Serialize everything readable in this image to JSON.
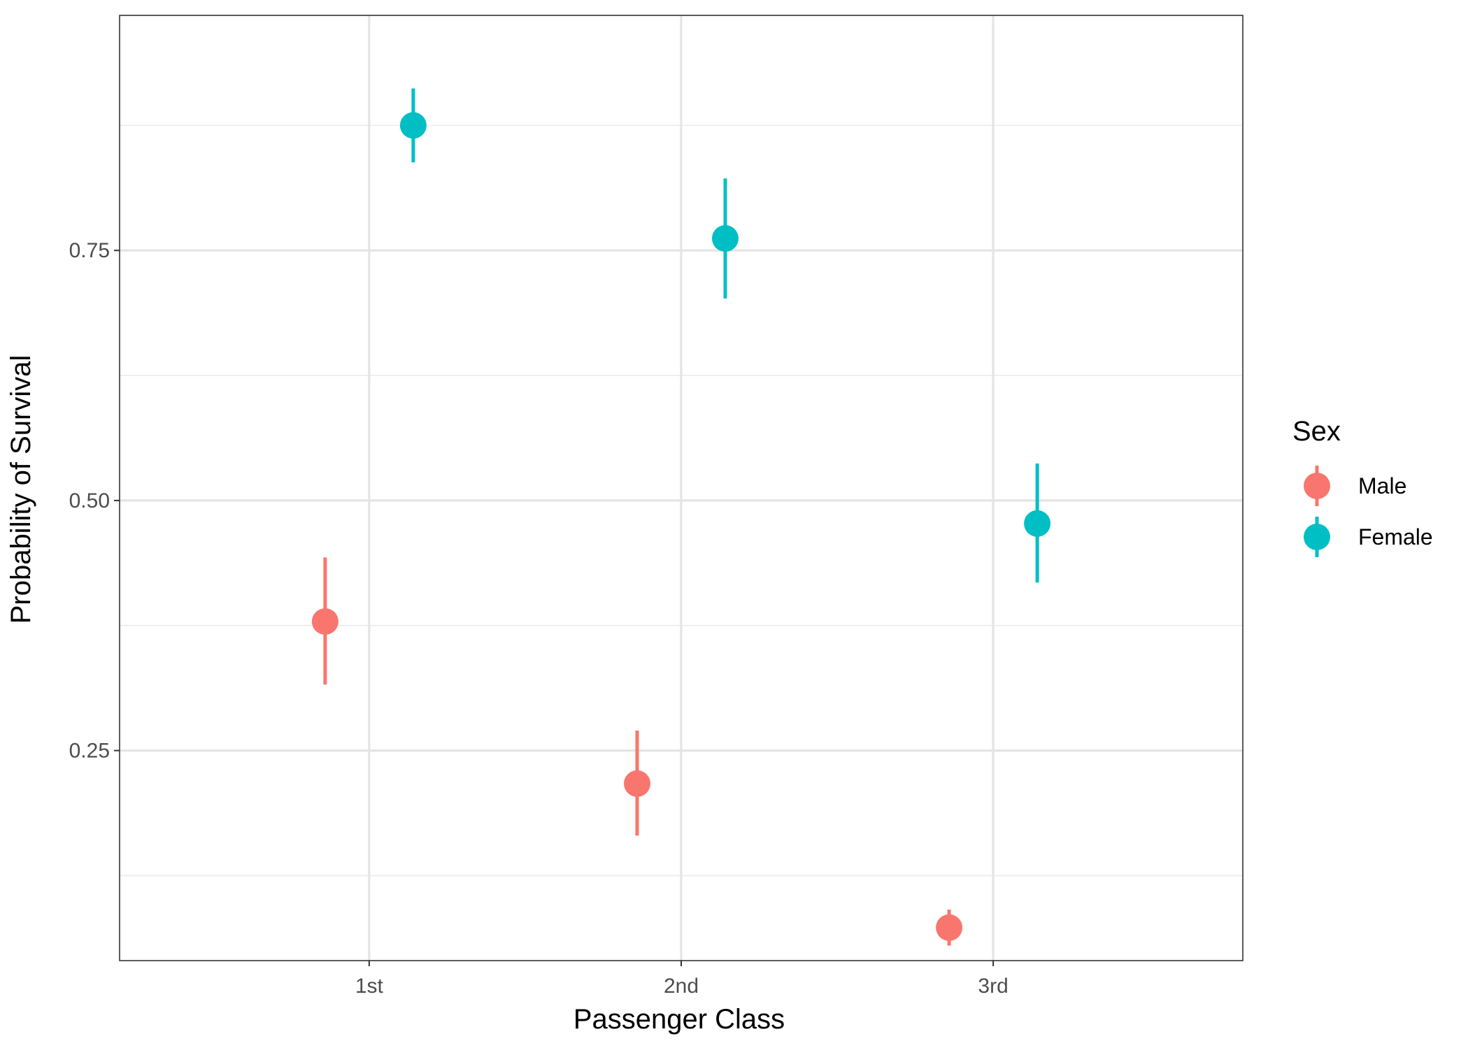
{
  "chart_data": {
    "type": "scatter",
    "subtype": "pointrange",
    "title": "",
    "xlabel": "Passenger Class",
    "ylabel": "Probability of Survival",
    "categories": [
      "1st",
      "2nd",
      "3rd"
    ],
    "ylim": [
      0.04,
      0.985
    ],
    "yticks": [
      0.25,
      0.5,
      0.75
    ],
    "ytick_labels": [
      "0.25",
      "0.50",
      "0.75"
    ],
    "grid": true,
    "legend": {
      "title": "Sex",
      "position": "right"
    },
    "series": [
      {
        "name": "Male",
        "color": "#F8766D",
        "points": [
          {
            "category": "1st",
            "y": 0.379,
            "ymin": 0.316,
            "ymax": 0.443
          },
          {
            "category": "2nd",
            "y": 0.217,
            "ymin": 0.165,
            "ymax": 0.27
          },
          {
            "category": "3rd",
            "y": 0.073,
            "ymin": 0.055,
            "ymax": 0.091
          }
        ]
      },
      {
        "name": "Female",
        "color": "#00BFC4",
        "points": [
          {
            "category": "1st",
            "y": 0.875,
            "ymin": 0.838,
            "ymax": 0.912
          },
          {
            "category": "2nd",
            "y": 0.762,
            "ymin": 0.702,
            "ymax": 0.822
          },
          {
            "category": "3rd",
            "y": 0.477,
            "ymin": 0.418,
            "ymax": 0.537
          }
        ]
      }
    ]
  }
}
